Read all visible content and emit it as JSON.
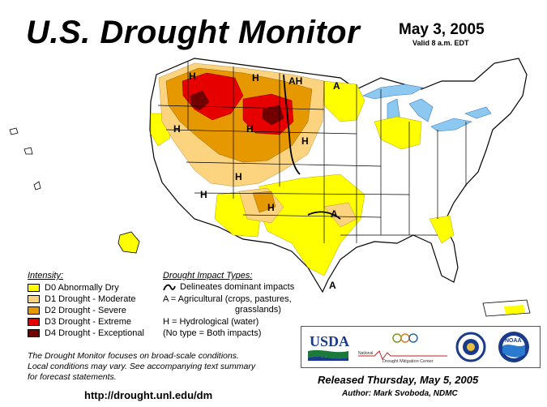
{
  "header": {
    "title": "U.S. Drought Monitor",
    "date": "May 3, 2005",
    "valid": "Valid 8 a.m. EDT"
  },
  "colors": {
    "d0": "#ffff00",
    "d1": "#fcd37f",
    "d2": "#e69800",
    "d3": "#e60000",
    "d4": "#730000",
    "water": "#8cc8f0",
    "state_border": "#000000",
    "county_line": "#bbbbbb"
  },
  "intensity": {
    "heading": "Intensity:",
    "items": [
      {
        "label": "D0 Abnormally Dry",
        "color": "#ffff00"
      },
      {
        "label": "D1 Drought - Moderate",
        "color": "#fcd37f"
      },
      {
        "label": "D2 Drought - Severe",
        "color": "#e69800"
      },
      {
        "label": "D3 Drought - Extreme",
        "color": "#e60000"
      },
      {
        "label": "D4 Drought - Exceptional",
        "color": "#730000"
      }
    ]
  },
  "impacts": {
    "heading": "Drought Impact Types:",
    "line_desc": "Delineates dominant impacts",
    "agri_line1": "A = Agricultural (crops, pastures,",
    "agri_line2": "grasslands)",
    "hydro": "H = Hydrological (water)",
    "both": "(No type = Both impacts)"
  },
  "map_labels": [
    {
      "text": "H",
      "type": "hydrological"
    },
    {
      "text": "H",
      "type": "hydrological"
    },
    {
      "text": "AH",
      "type": "both-marked"
    },
    {
      "text": "A",
      "type": "agricultural"
    },
    {
      "text": "H",
      "type": "hydrological"
    },
    {
      "text": "H",
      "type": "hydrological"
    },
    {
      "text": "H",
      "type": "hydrological"
    },
    {
      "text": "H",
      "type": "hydrological"
    },
    {
      "text": "H",
      "type": "hydrological"
    },
    {
      "text": "H",
      "type": "hydrological"
    },
    {
      "text": "A",
      "type": "agricultural"
    },
    {
      "text": "A",
      "type": "agricultural"
    }
  ],
  "note": {
    "line1": "The Drought Monitor focuses on broad-scale conditions.",
    "line2": "Local conditions may vary.  See accompanying text summary",
    "line3": "for forecast statements."
  },
  "footer": {
    "url": "http://drought.unl.edu/dm",
    "released": "Released Thursday, May 5, 2005",
    "author": "Author: Mark Svoboda, NDMC"
  },
  "logos": {
    "usda": "USDA",
    "ndmc_word1": "National",
    "ndmc_word2": "Drought Mitigation Center",
    "noaa": "NOAA",
    "icons": [
      "usda-logo-icon",
      "ndmc-logo-icon",
      "doc-seal-icon",
      "noaa-logo-icon"
    ]
  }
}
